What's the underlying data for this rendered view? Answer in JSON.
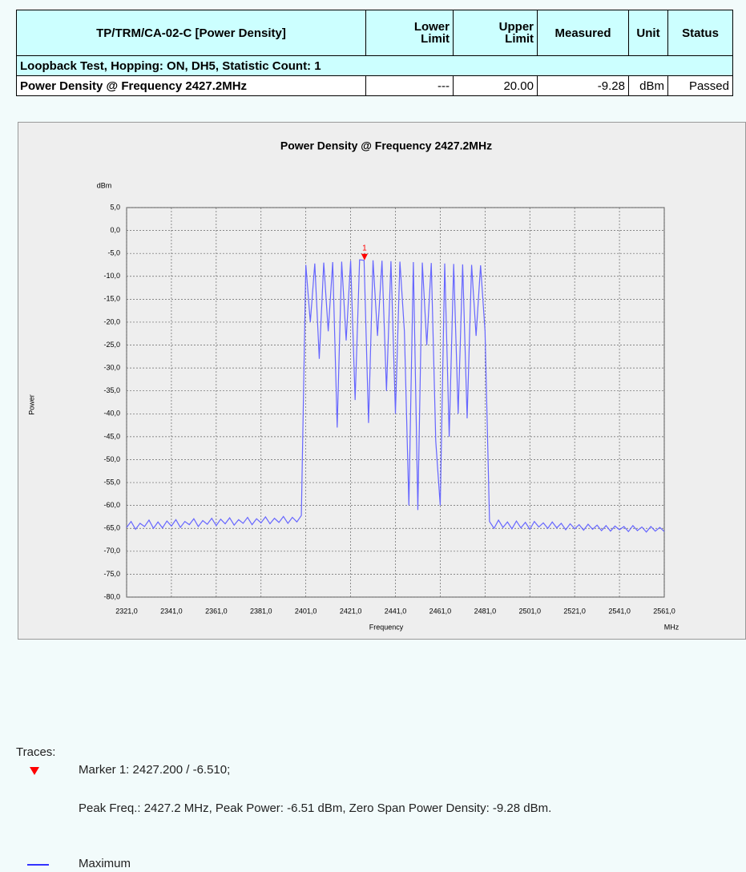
{
  "table": {
    "header": [
      "TP/TRM/CA-02-C [Power Density]",
      [
        "Lower",
        "Limit"
      ],
      [
        "Upper",
        "Limit"
      ],
      "Measured",
      "Unit",
      "Status"
    ],
    "rows": [
      [
        "Loopback Test, Hopping: ON, DH5, Statistic Count: 1"
      ],
      [
        "Power Density @ Frequency 2427.2MHz",
        "---",
        "20.00",
        "-9.28",
        "dBm",
        "Passed"
      ]
    ]
  },
  "chart_data": {
    "type": "line",
    "title": "Power Density @ Frequency 2427.2MHz",
    "y_unit": "dBm",
    "y_label": "Power",
    "x_label": "Frequency",
    "x_unit": "MHz",
    "xlim": [
      2321,
      2561
    ],
    "ylim": [
      -80,
      5
    ],
    "grid": true,
    "xticks": [
      {
        "value": 2321,
        "label": "2321,0"
      },
      {
        "value": 2341,
        "label": "2341,0"
      },
      {
        "value": 2361,
        "label": "2361,0"
      },
      {
        "value": 2381,
        "label": "2381,0"
      },
      {
        "value": 2401,
        "label": "2401,0"
      },
      {
        "value": 2421,
        "label": "2421,0"
      },
      {
        "value": 2441,
        "label": "2441,0"
      },
      {
        "value": 2461,
        "label": "2461,0"
      },
      {
        "value": 2481,
        "label": "2481,0"
      },
      {
        "value": 2501,
        "label": "2501,0"
      },
      {
        "value": 2521,
        "label": "2521,0"
      },
      {
        "value": 2541,
        "label": "2541,0"
      },
      {
        "value": 2561,
        "label": "2561,0"
      }
    ],
    "yticks": [
      {
        "value": 5,
        "label": "5,0"
      },
      {
        "value": 0,
        "label": "0,0"
      },
      {
        "value": -5,
        "label": "-5,0"
      },
      {
        "value": -10,
        "label": "-10,0"
      },
      {
        "value": -15,
        "label": "-15,0"
      },
      {
        "value": -20,
        "label": "-20,0"
      },
      {
        "value": -25,
        "label": "-25,0"
      },
      {
        "value": -30,
        "label": "-30,0"
      },
      {
        "value": -35,
        "label": "-35,0"
      },
      {
        "value": -40,
        "label": "-40,0"
      },
      {
        "value": -45,
        "label": "-45,0"
      },
      {
        "value": -50,
        "label": "-50,0"
      },
      {
        "value": -55,
        "label": "-55,0"
      },
      {
        "value": -60,
        "label": "-60,0"
      },
      {
        "value": -65,
        "label": "-65,0"
      },
      {
        "value": -70,
        "label": "-70,0"
      },
      {
        "value": -75,
        "label": "-75,0"
      },
      {
        "value": -80,
        "label": "-80,0"
      }
    ],
    "x": [
      2321,
      2323,
      2325,
      2327,
      2329,
      2331,
      2333,
      2335,
      2337,
      2339,
      2341,
      2343,
      2345,
      2347,
      2349,
      2351,
      2353,
      2355,
      2357,
      2359,
      2361,
      2363,
      2365,
      2367,
      2369,
      2371,
      2373,
      2375,
      2377,
      2379,
      2381,
      2383,
      2385,
      2387,
      2389,
      2391,
      2393,
      2395,
      2397,
      2399,
      2401,
      2403,
      2405,
      2407,
      2409,
      2411,
      2413,
      2415,
      2417,
      2419,
      2421,
      2423,
      2425,
      2427,
      2429,
      2431,
      2433,
      2435,
      2437,
      2439,
      2441,
      2443,
      2445,
      2447,
      2449,
      2451,
      2453,
      2455,
      2457,
      2459,
      2461,
      2463,
      2465,
      2467,
      2469,
      2471,
      2473,
      2475,
      2477,
      2479,
      2481,
      2483,
      2485,
      2487,
      2489,
      2491,
      2493,
      2495,
      2497,
      2499,
      2501,
      2503,
      2505,
      2507,
      2509,
      2511,
      2513,
      2515,
      2517,
      2519,
      2521,
      2523,
      2525,
      2527,
      2529,
      2531,
      2533,
      2535,
      2537,
      2539,
      2541,
      2543,
      2545,
      2547,
      2549,
      2551,
      2553,
      2555,
      2557,
      2559,
      2561
    ],
    "series": [
      {
        "name": "Maximum",
        "color": "#6666ff",
        "values": [
          -64.8,
          -63.5,
          -65.2,
          -63.9,
          -64.6,
          -63.2,
          -65.0,
          -63.6,
          -64.9,
          -63.4,
          -64.5,
          -63.1,
          -64.8,
          -63.5,
          -64.2,
          -62.9,
          -64.6,
          -63.3,
          -64.1,
          -62.8,
          -64.4,
          -63.0,
          -64.0,
          -62.7,
          -64.3,
          -63.1,
          -63.9,
          -62.6,
          -64.2,
          -62.9,
          -63.8,
          -62.5,
          -64.0,
          -62.8,
          -63.7,
          -62.4,
          -63.9,
          -62.6,
          -63.6,
          -62.2,
          -7.5,
          -20,
          -7.2,
          -28,
          -7.0,
          -22,
          -6.9,
          -43,
          -6.8,
          -24,
          -6.6,
          -37,
          -6.4,
          -6.51,
          -42,
          -6.5,
          -23,
          -6.6,
          -35,
          -6.7,
          -40,
          -6.8,
          -22,
          -60,
          -6.9,
          -61,
          -7.0,
          -25,
          -7.1,
          -46,
          -60,
          -7.2,
          -45,
          -7.3,
          -40,
          -7.4,
          -41,
          -7.5,
          -23,
          -7.6,
          -22,
          -63.5,
          -65.0,
          -63.2,
          -64.8,
          -63.6,
          -65.1,
          -63.4,
          -64.9,
          -63.7,
          -65.2,
          -63.5,
          -64.7,
          -63.8,
          -65.0,
          -63.6,
          -64.9,
          -63.9,
          -65.3,
          -64.0,
          -65.1,
          -64.2,
          -65.4,
          -64.1,
          -65.2,
          -64.3,
          -65.5,
          -64.4,
          -65.6,
          -64.5,
          -65.3,
          -64.6,
          -65.7,
          -64.4,
          -65.5,
          -64.7,
          -65.8,
          -64.6,
          -65.6,
          -64.8,
          -65.7
        ]
      }
    ],
    "markers": [
      {
        "label": "1",
        "x": 2427.2,
        "y": -6.51,
        "color": "#ff0000"
      }
    ]
  },
  "traces": {
    "title": "Traces:",
    "marker_text": "Marker 1: 2427.200 / -6.510;",
    "peak_text": "Peak Freq.: 2427.2 MHz, Peak Power: -6.51 dBm, Zero Span Power Density: -9.28 dBm."
  }
}
